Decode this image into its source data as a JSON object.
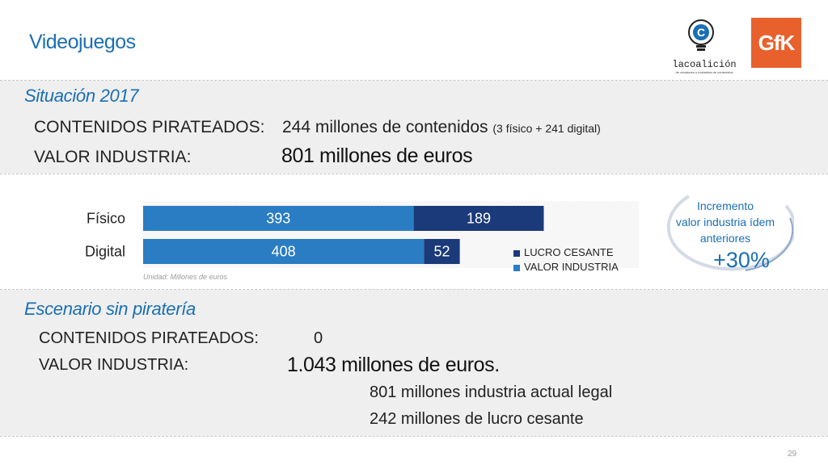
{
  "header": {
    "title": "Videojuegos",
    "logo_coalicion": "lacoalición",
    "logo_coalicion_tagline": "de creadores e industrias de contenidos",
    "logo_gfk": "GfK"
  },
  "situacion": {
    "heading": "Situación 2017",
    "contenidos_label": "CONTENIDOS PIRATEADOS:",
    "contenidos_value": "244 millones de contenidos",
    "contenidos_detail": "(3 físico + 241 digital)",
    "valor_label": "VALOR INDUSTRIA:",
    "valor_value": "801 millones de euros"
  },
  "chart_data": {
    "type": "bar",
    "orientation": "horizontal",
    "stacked": true,
    "categories": [
      "Físico",
      "Digital"
    ],
    "series": [
      {
        "name": "VALOR INDUSTRIA",
        "values": [
          393,
          408
        ],
        "color": "#2a7dc2"
      },
      {
        "name": "LUCRO CESANTE",
        "values": [
          189,
          52
        ],
        "color": "#1b3a7a"
      }
    ],
    "xlim": [
      0,
      720
    ],
    "unit_note": "Unidad: Millones de euros",
    "legend_position": "right",
    "legend": [
      "LUCRO CESANTE",
      "VALOR INDUSTRIA"
    ]
  },
  "callout": {
    "text_lines": [
      "Incremento",
      "valor industria ídem",
      "anteriores"
    ],
    "value": "+30%"
  },
  "escenario": {
    "heading": "Escenario sin piratería",
    "contenidos_label": "CONTENIDOS PIRATEADOS:",
    "contenidos_value": "0",
    "valor_label": "VALOR INDUSTRIA:",
    "valor_value": "1.043 millones de euros.",
    "detail_1": "801 millones industria actual legal",
    "detail_2": "242 millones de lucro cesante"
  },
  "footer": {
    "page_number": "29"
  },
  "colors": {
    "accent": "#1a6fb4",
    "bar_light": "#2a7dc2",
    "bar_dark": "#1b3a7a",
    "band": "#efefef"
  }
}
